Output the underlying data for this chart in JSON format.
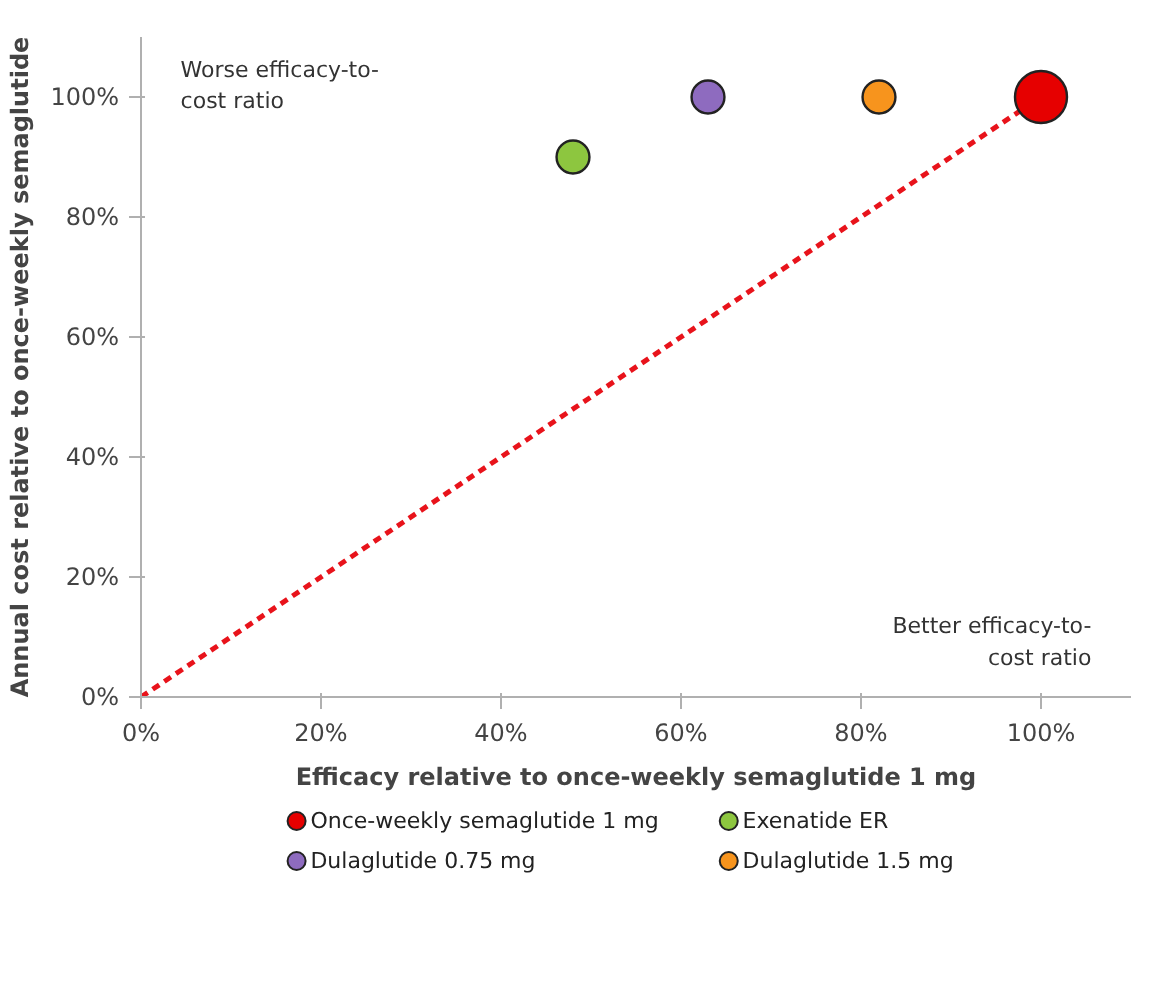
{
  "chart_data": {
    "type": "bubble",
    "xlabel": "Efficacy relative to once-weekly semaglutide 1 mg",
    "ylabel": "Annual cost relative to once-weekly semaglutide",
    "xlim": [
      0,
      110
    ],
    "ylim": [
      0,
      110
    ],
    "xticks": [
      {
        "value": 0,
        "label": "0%"
      },
      {
        "value": 20,
        "label": "20%"
      },
      {
        "value": 40,
        "label": "40%"
      },
      {
        "value": 60,
        "label": "60%"
      },
      {
        "value": 80,
        "label": "80%"
      },
      {
        "value": 100,
        "label": "100%"
      }
    ],
    "yticks": [
      {
        "value": 0,
        "label": "0%"
      },
      {
        "value": 20,
        "label": "20%"
      },
      {
        "value": 40,
        "label": "40%"
      },
      {
        "value": 60,
        "label": "60%"
      },
      {
        "value": 80,
        "label": "80%"
      },
      {
        "value": 100,
        "label": "100%"
      }
    ],
    "series": [
      {
        "type": "line",
        "x": [
          0,
          100
        ],
        "values": [
          0,
          100
        ],
        "color": "#e8131b",
        "line_style": "dashed"
      },
      {
        "name": "Once-weekly semaglutide 1 mg",
        "color": "#e60000",
        "x": [
          100
        ],
        "values": [
          100
        ],
        "sizes": [
          1
        ]
      },
      {
        "name": "Exenatide ER",
        "color": "#8dc63f",
        "x": [
          48
        ],
        "values": [
          90
        ],
        "sizes": [
          0.4
        ]
      },
      {
        "name": "Dulaglutide 0.75 mg",
        "color": "#8e6bbf",
        "x": [
          63
        ],
        "values": [
          100
        ],
        "sizes": [
          0.4
        ]
      },
      {
        "name": "Dulaglutide 1.5 mg",
        "color": "#f7941d",
        "x": [
          82
        ],
        "values": [
          100
        ],
        "sizes": [
          0.4
        ]
      }
    ],
    "annotations": [
      "Worse efficacy-to-\ncost ratio",
      "Better efficacy-to-\ncost ratio"
    ],
    "legend": "bottom",
    "grid": false
  }
}
